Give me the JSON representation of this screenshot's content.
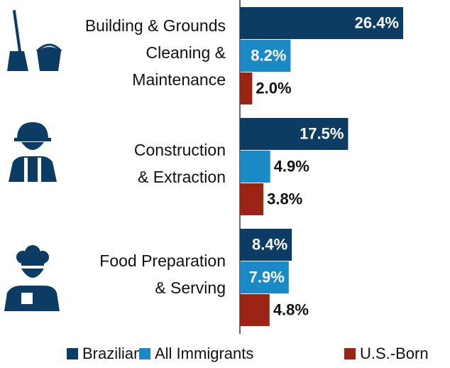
{
  "chart_data": {
    "type": "bar",
    "orientation": "horizontal",
    "categories": [
      [
        "Building & Grounds",
        "Cleaning &",
        "Maintenance"
      ],
      [
        "Construction",
        "& Extraction"
      ],
      [
        "Food Preparation",
        "& Serving"
      ]
    ],
    "series": [
      {
        "name": "Brazilians",
        "color": "#0c3b63",
        "values": [
          26.4,
          17.5,
          8.4
        ],
        "value_labels": [
          "26.4%",
          "17.5%",
          "8.4%"
        ]
      },
      {
        "name": "All Immigrants",
        "color": "#1a8ac6",
        "values": [
          8.2,
          4.9,
          7.9
        ],
        "value_labels": [
          "8.2%",
          "4.9%",
          "7.9%"
        ]
      },
      {
        "name": "U.S.-Born",
        "color": "#9c2414",
        "values": [
          2.0,
          3.8,
          4.8
        ],
        "value_labels": [
          "2.0%",
          "3.8%",
          "4.8%"
        ]
      }
    ]
  }
}
